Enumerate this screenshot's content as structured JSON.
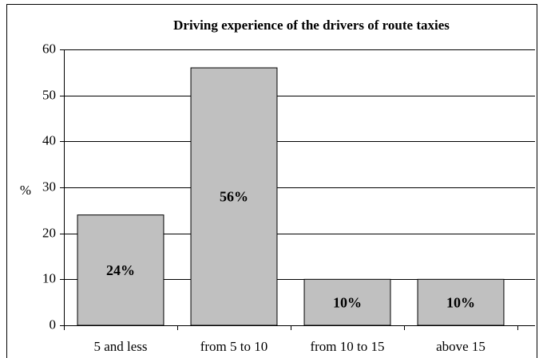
{
  "chart_data": {
    "type": "bar",
    "title": "Driving experience of the drivers of route taxies",
    "y_label": "%",
    "categories": [
      "5 and less",
      "from 5 to 10",
      "from 10 to 15",
      "above 15"
    ],
    "values": [
      24,
      56,
      10,
      10
    ],
    "value_labels": [
      "24%",
      "56%",
      "10%",
      "10%"
    ],
    "color": "#c0c0c0",
    "ylim": [
      0,
      60
    ],
    "yticks": [
      0,
      10,
      20,
      30,
      40,
      50,
      60
    ],
    "grid": true
  }
}
